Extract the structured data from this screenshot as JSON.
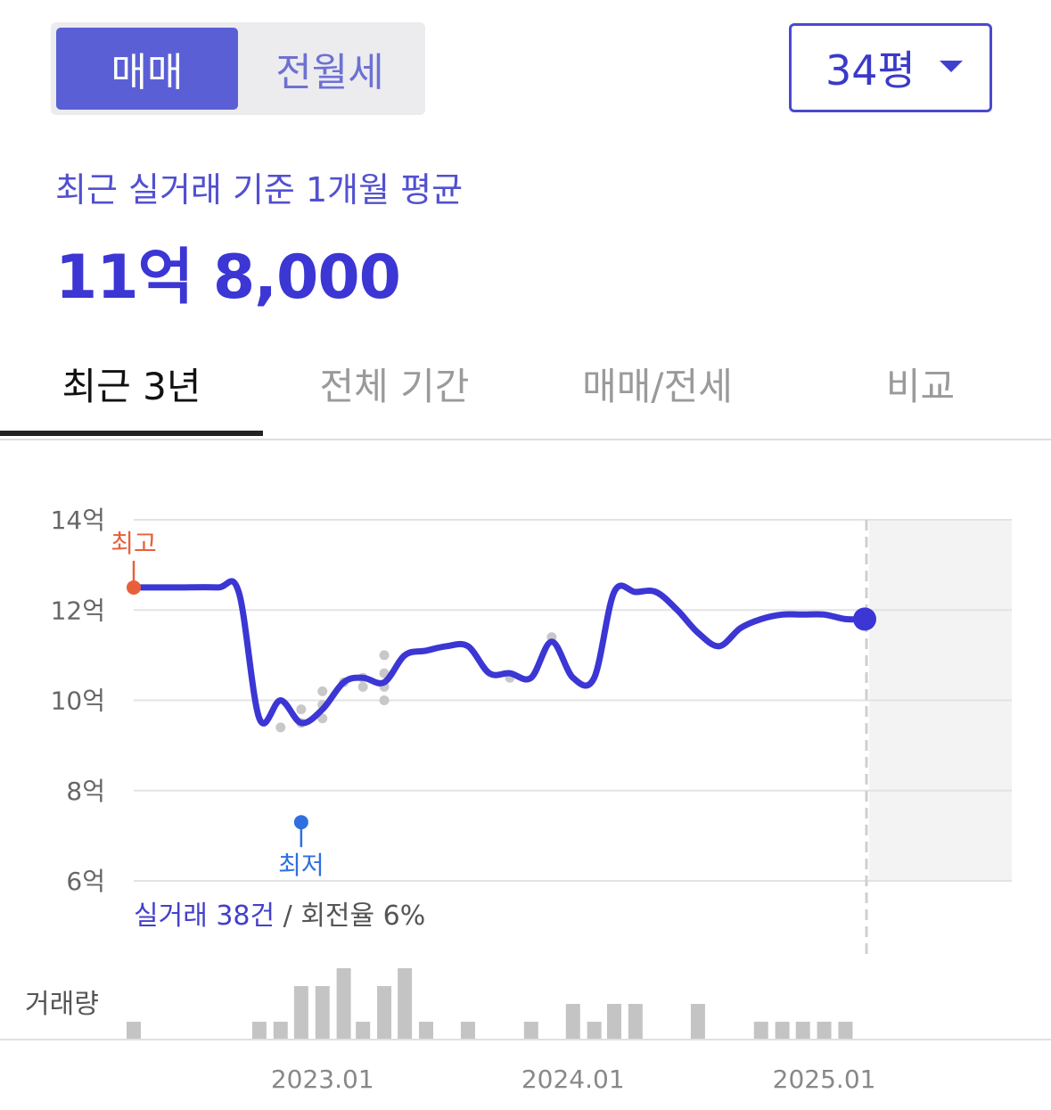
{
  "trade_toggle": {
    "options": [
      "매매",
      "전월세"
    ],
    "selected": "매매"
  },
  "size_select": {
    "value": "34평"
  },
  "summary": {
    "label": "최근 실거래 기준 1개월 평균",
    "price": "11억 8,000"
  },
  "tabs": [
    "최근 3년",
    "전체 기간",
    "매매/전세",
    "비교"
  ],
  "active_tab": "최근 3년",
  "colors": {
    "accent": "#3b36d4",
    "high": "#e8603a",
    "low": "#2f6fe0",
    "volume": "#c4c4c4"
  },
  "markers": {
    "high_label": "최고",
    "low_label": "최저"
  },
  "stats": {
    "count_text": "실거래 38건",
    "separator": " / ",
    "turnover_text": "회전율 6%"
  },
  "volume_label": "거래량",
  "chart_data": {
    "type": "line",
    "y_unit": "억",
    "ylim": [
      6,
      14
    ],
    "yticks": [
      "14억",
      "12억",
      "10억",
      "8억",
      "6억"
    ],
    "xticks": [
      "2023.01",
      "2024.01",
      "2025.01"
    ],
    "grid": true,
    "series": [
      {
        "x": [
          "2022-04",
          "2022-06",
          "2022-08",
          "2022-09",
          "2022-10",
          "2022-11",
          "2022-12",
          "2023-01",
          "2023-02",
          "2023-03",
          "2023-04",
          "2023-05",
          "2023-06",
          "2023-07",
          "2023-08",
          "2023-09",
          "2023-10",
          "2023-11",
          "2023-12",
          "2024-01",
          "2024-02",
          "2024-03",
          "2024-04",
          "2024-05",
          "2024-06",
          "2024-07",
          "2024-08",
          "2024-09",
          "2024-10",
          "2024-11",
          "2024-12",
          "2025-01",
          "2025-02",
          "2025-03"
        ],
        "values": [
          12.5,
          12.5,
          12.5,
          12.4,
          9.6,
          10.0,
          9.5,
          9.8,
          10.4,
          10.5,
          10.4,
          11.0,
          11.1,
          11.2,
          11.2,
          10.6,
          10.6,
          10.5,
          11.3,
          10.5,
          10.5,
          12.4,
          12.4,
          12.4,
          12.0,
          11.5,
          11.2,
          11.6,
          11.8,
          11.9,
          11.9,
          11.9,
          11.8,
          11.8
        ]
      }
    ],
    "scatter": {
      "x": [
        "2022-11",
        "2022-12",
        "2022-12",
        "2023-01",
        "2023-01",
        "2023-01",
        "2023-02",
        "2023-03",
        "2023-03",
        "2023-04",
        "2023-04",
        "2023-04",
        "2023-04",
        "2023-10",
        "2023-12"
      ],
      "values": [
        9.4,
        9.5,
        9.8,
        9.6,
        9.9,
        10.2,
        10.4,
        10.5,
        10.3,
        11.0,
        10.6,
        10.3,
        10.0,
        10.5,
        11.4
      ]
    },
    "high": {
      "x": "2022-04",
      "value": 12.5
    },
    "low": {
      "x": "2022-12",
      "value": 9.5
    },
    "last": {
      "x": "2025-03",
      "value": 11.8
    },
    "volume": {
      "x": [
        "2022-04",
        "2022-10",
        "2022-11",
        "2022-12",
        "2023-01",
        "2023-02",
        "2023-03",
        "2023-04",
        "2023-05",
        "2023-06",
        "2023-08",
        "2023-11",
        "2024-01",
        "2024-02",
        "2024-03",
        "2024-04",
        "2024-07",
        "2024-10",
        "2024-11",
        "2024-12",
        "2025-01",
        "2025-02"
      ],
      "values": [
        1,
        1,
        1,
        3,
        3,
        4,
        1,
        3,
        4,
        1,
        1,
        1,
        2,
        1,
        2,
        2,
        2,
        1,
        1,
        1,
        1,
        1
      ]
    }
  }
}
